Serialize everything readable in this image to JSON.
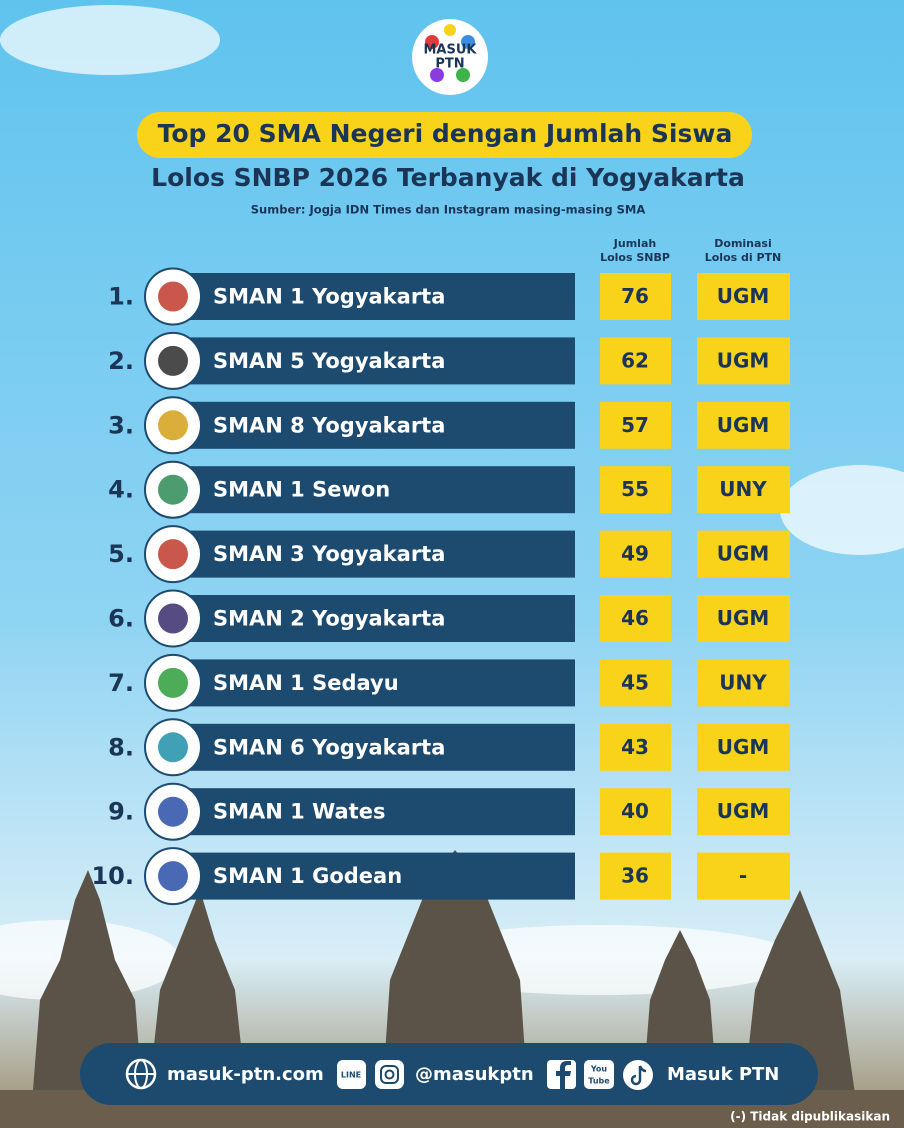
{
  "logo": {
    "line1": "MASUK",
    "line2": "PTN"
  },
  "header": {
    "title_line1": "Top 20 SMA Negeri dengan Jumlah Siswa",
    "title_line2": "Lolos SNBP 2026 Terbanyak di Yogyakarta",
    "source": "Sumber: Jogja IDN Times dan Instagram masing-masing SMA"
  },
  "table": {
    "columns": [
      [
        "Jumlah",
        "Lolos SNBP"
      ],
      [
        "Dominasi",
        "Lolos di PTN"
      ]
    ],
    "rows": [
      {
        "rank": "1.",
        "school": "SMAN 1 Yogyakarta",
        "count": 76,
        "ptn": "UGM"
      },
      {
        "rank": "2.",
        "school": "SMAN 5 Yogyakarta",
        "count": 62,
        "ptn": "UGM"
      },
      {
        "rank": "3.",
        "school": "SMAN 8 Yogyakarta",
        "count": 57,
        "ptn": "UGM"
      },
      {
        "rank": "4.",
        "school": "SMAN 1 Sewon",
        "count": 55,
        "ptn": "UNY"
      },
      {
        "rank": "5.",
        "school": "SMAN 3 Yogyakarta",
        "count": 49,
        "ptn": "UGM"
      },
      {
        "rank": "6.",
        "school": "SMAN 2 Yogyakarta",
        "count": 46,
        "ptn": "UGM"
      },
      {
        "rank": "7.",
        "school": "SMAN 1 Sedayu",
        "count": 45,
        "ptn": "UNY"
      },
      {
        "rank": "8.",
        "school": "SMAN 6 Yogyakarta",
        "count": 43,
        "ptn": "UGM"
      },
      {
        "rank": "9.",
        "school": "SMAN 1 Wates",
        "count": 40,
        "ptn": "UGM"
      },
      {
        "rank": "10.",
        "school": "SMAN 1 Godean",
        "count": 36,
        "ptn": "-"
      }
    ]
  },
  "footer": {
    "website": "masuk-ptn.com",
    "line_icon": "LINE",
    "handle": "@masukptn",
    "youtube_icon": [
      "You",
      "Tube"
    ],
    "brand": "Masuk PTN",
    "note": "(-) Tidak dipublikasikan"
  }
}
